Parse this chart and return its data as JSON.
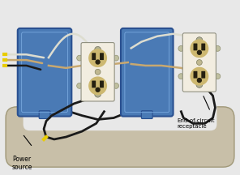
{
  "bg_color": "#e8e8e8",
  "box_color": "#4a7ab5",
  "box_edge_color": "#2a5090",
  "box_inner_color": "#5a8ac5",
  "conduit_color": "#c8bfa8",
  "conduit_edge": "#a09878",
  "outlet_body": "#f0ece0",
  "outlet_face": "#e8e0c0",
  "outlet_hole_bg": "#c8b870",
  "outlet_slot": "#2a2010",
  "wire_black": "#1a1a1a",
  "wire_white": "#ddddd0",
  "wire_tan": "#c8a870",
  "wire_yellow": "#e8cc00",
  "label_power": "Power\nsource",
  "label_end": "End-of-circuit\nreceptacle"
}
